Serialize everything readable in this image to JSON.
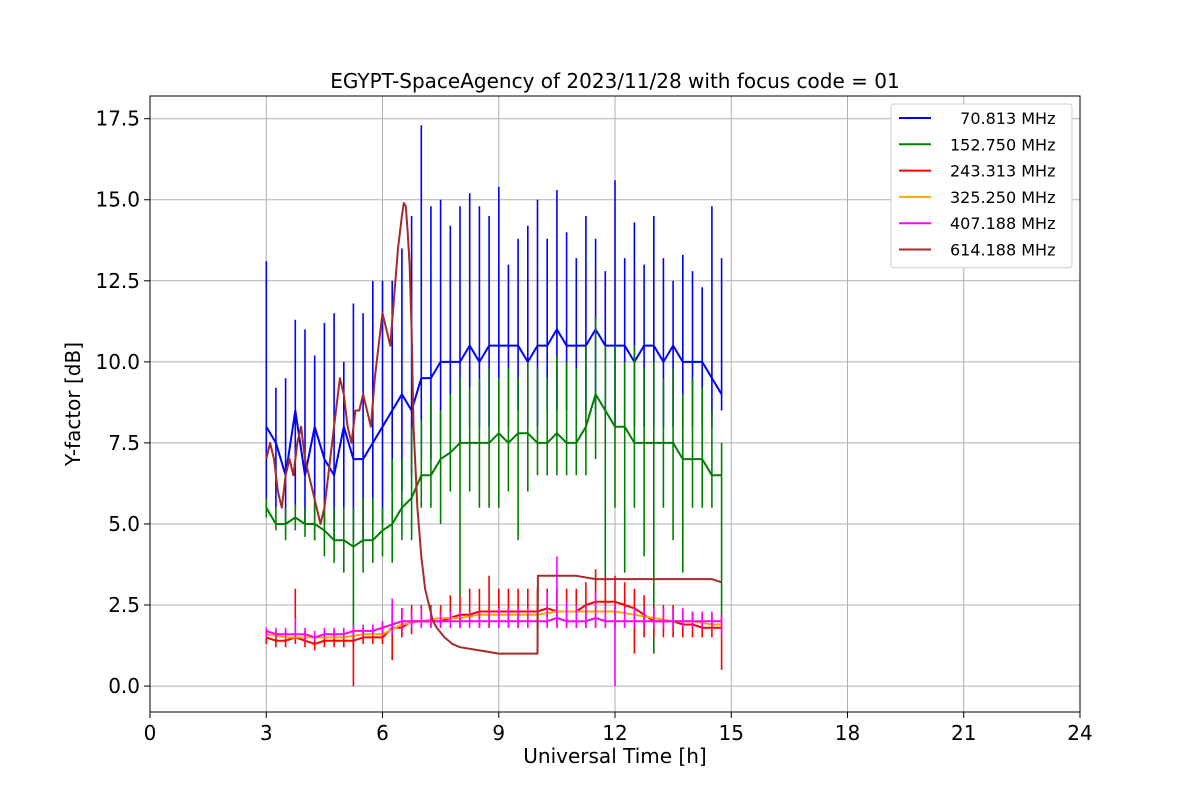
{
  "chart_data": {
    "type": "line",
    "title": "EGYPT-SpaceAgency of 2023/11/28 with focus code = 01",
    "xlabel": "Universal Time [h]",
    "ylabel": "Y-factor [dB]",
    "xlim": [
      0,
      24
    ],
    "ylim": [
      -0.8,
      18.2
    ],
    "xticks": [
      0,
      3,
      6,
      9,
      12,
      15,
      18,
      21,
      24
    ],
    "yticks": [
      0.0,
      2.5,
      5.0,
      7.5,
      10.0,
      12.5,
      15.0,
      17.5
    ],
    "xtick_labels": [
      "0",
      "3",
      "6",
      "9",
      "12",
      "15",
      "18",
      "21",
      "24"
    ],
    "ytick_labels": [
      "0.0",
      "2.5",
      "5.0",
      "7.5",
      "10.0",
      "12.5",
      "15.0",
      "17.5"
    ],
    "grid": true,
    "legend_position": "top-right",
    "series": [
      {
        "name": "  70.813 MHz",
        "color": "#0000ff",
        "x": [
          3.0,
          3.25,
          3.5,
          3.75,
          4.0,
          4.25,
          4.5,
          4.75,
          5.0,
          5.25,
          5.5,
          5.75,
          6.0,
          6.25,
          6.5,
          6.75,
          7.0,
          7.25,
          7.5,
          7.75,
          8.0,
          8.25,
          8.5,
          8.75,
          9.0,
          9.25,
          9.5,
          9.75,
          10.0,
          10.25,
          10.5,
          10.75,
          11.0,
          11.25,
          11.5,
          11.75,
          12.0,
          12.25,
          12.5,
          12.75,
          13.0,
          13.25,
          13.5,
          13.75,
          14.0,
          14.25,
          14.5,
          14.75
        ],
        "y": [
          8.0,
          7.5,
          6.5,
          8.5,
          6.5,
          8.0,
          7.0,
          6.5,
          8.0,
          7.0,
          7.0,
          7.5,
          8.0,
          8.5,
          9.0,
          8.5,
          9.5,
          9.5,
          10.0,
          10.0,
          10.0,
          10.5,
          10.0,
          10.5,
          10.5,
          10.5,
          10.5,
          10.0,
          10.5,
          10.5,
          11.0,
          10.5,
          10.5,
          10.5,
          11.0,
          10.5,
          10.5,
          10.5,
          10.0,
          10.5,
          10.5,
          10.0,
          10.5,
          10.0,
          10.0,
          10.0,
          9.5,
          9.0
        ],
        "ymin": [
          5.5,
          5.5,
          5.0,
          5.5,
          5.0,
          4.5,
          5.0,
          4.5,
          5.5,
          4.5,
          4.5,
          5.0,
          5.0,
          6.0,
          6.0,
          6.5,
          7.0,
          7.0,
          7.5,
          7.5,
          7.5,
          8.0,
          8.0,
          8.0,
          8.0,
          8.0,
          8.5,
          8.0,
          8.0,
          8.5,
          8.5,
          8.5,
          8.5,
          8.5,
          8.5,
          8.5,
          8.0,
          8.0,
          8.0,
          8.0,
          8.0,
          8.0,
          8.0,
          8.0,
          8.0,
          8.0,
          8.0,
          8.5
        ],
        "ymax": [
          13.1,
          9.2,
          9.5,
          11.3,
          11.0,
          10.2,
          11.2,
          11.5,
          10.0,
          11.8,
          11.5,
          12.5,
          12.5,
          12.5,
          13.5,
          14.5,
          17.3,
          14.8,
          15.0,
          14.2,
          14.8,
          15.2,
          14.8,
          14.5,
          15.4,
          13.0,
          13.8,
          14.2,
          15.0,
          13.8,
          15.3,
          14.0,
          13.2,
          14.5,
          13.8,
          12.8,
          15.6,
          13.2,
          14.3,
          13.0,
          14.5,
          13.2,
          12.5,
          13.3,
          12.8,
          12.3,
          14.8,
          13.2
        ]
      },
      {
        "name": "152.750 MHz",
        "color": "#008000",
        "x": [
          3.0,
          3.25,
          3.5,
          3.75,
          4.0,
          4.25,
          4.5,
          4.75,
          5.0,
          5.25,
          5.5,
          5.75,
          6.0,
          6.25,
          6.5,
          6.75,
          7.0,
          7.25,
          7.5,
          7.75,
          8.0,
          8.25,
          8.5,
          8.75,
          9.0,
          9.25,
          9.5,
          9.75,
          10.0,
          10.25,
          10.5,
          10.75,
          11.0,
          11.25,
          11.5,
          11.75,
          12.0,
          12.25,
          12.5,
          12.75,
          13.0,
          13.25,
          13.5,
          13.75,
          14.0,
          14.25,
          14.5,
          14.75
        ],
        "y": [
          5.5,
          5.0,
          5.0,
          5.2,
          5.0,
          5.0,
          4.8,
          4.5,
          4.5,
          4.3,
          4.5,
          4.5,
          4.8,
          5.0,
          5.5,
          5.8,
          6.5,
          6.5,
          7.0,
          7.2,
          7.5,
          7.5,
          7.5,
          7.5,
          7.8,
          7.5,
          7.8,
          7.8,
          7.5,
          7.5,
          7.8,
          7.5,
          7.5,
          8.0,
          9.0,
          8.5,
          8.0,
          8.0,
          7.5,
          7.5,
          7.5,
          7.5,
          7.5,
          7.0,
          7.0,
          7.0,
          6.5,
          6.5
        ],
        "ymin": [
          5.2,
          4.8,
          4.5,
          4.8,
          4.6,
          4.5,
          4.0,
          3.8,
          3.5,
          1.2,
          3.5,
          3.8,
          4.0,
          3.8,
          4.5,
          4.5,
          5.5,
          5.5,
          5.0,
          6.0,
          2.8,
          6.0,
          5.5,
          5.5,
          5.5,
          6.0,
          4.5,
          6.0,
          6.5,
          6.5,
          6.5,
          6.5,
          6.5,
          6.5,
          7.0,
          1.8,
          5.5,
          3.5,
          5.5,
          4.0,
          1.0,
          5.5,
          4.5,
          3.5,
          5.5,
          5.5,
          5.5,
          2.0
        ],
        "ymax": [
          5.8,
          5.5,
          5.5,
          5.6,
          5.5,
          5.8,
          5.5,
          5.5,
          5.5,
          5.5,
          5.8,
          5.8,
          5.5,
          7.0,
          7.0,
          8.0,
          8.2,
          8.8,
          8.5,
          9.0,
          9.5,
          9.2,
          9.5,
          9.8,
          9.5,
          9.8,
          9.5,
          10.0,
          9.8,
          9.5,
          10.2,
          10.0,
          9.8,
          10.5,
          11.4,
          10.5,
          10.5,
          10.0,
          10.5,
          9.8,
          10.0,
          9.5,
          9.8,
          9.0,
          9.5,
          9.2,
          8.5,
          7.5
        ]
      },
      {
        "name": "243.313 MHz",
        "color": "#ff0000",
        "x": [
          3.0,
          3.25,
          3.5,
          3.75,
          4.0,
          4.25,
          4.5,
          4.75,
          5.0,
          5.25,
          5.5,
          5.75,
          6.0,
          6.25,
          6.5,
          6.75,
          7.0,
          7.25,
          7.5,
          7.75,
          8.0,
          8.25,
          8.5,
          8.75,
          9.0,
          9.25,
          9.5,
          9.75,
          10.0,
          10.25,
          10.5,
          10.75,
          11.0,
          11.25,
          11.5,
          11.75,
          12.0,
          12.25,
          12.5,
          12.75,
          13.0,
          13.25,
          13.5,
          13.75,
          14.0,
          14.25,
          14.5,
          14.75
        ],
        "y": [
          1.5,
          1.4,
          1.4,
          1.5,
          1.4,
          1.3,
          1.4,
          1.4,
          1.4,
          1.4,
          1.5,
          1.5,
          1.5,
          1.8,
          1.8,
          2.0,
          2.0,
          2.0,
          2.0,
          2.1,
          2.2,
          2.2,
          2.3,
          2.3,
          2.3,
          2.3,
          2.3,
          2.3,
          2.3,
          2.4,
          2.3,
          2.3,
          2.3,
          2.5,
          2.6,
          2.6,
          2.6,
          2.5,
          2.4,
          2.2,
          2.0,
          2.0,
          2.0,
          1.9,
          1.9,
          1.8,
          1.8,
          1.8
        ],
        "ymin": [
          1.3,
          1.2,
          1.2,
          1.3,
          1.2,
          1.1,
          1.2,
          1.2,
          1.2,
          0.0,
          1.3,
          1.3,
          1.3,
          0.8,
          1.5,
          1.6,
          1.8,
          1.8,
          1.8,
          1.8,
          1.8,
          1.8,
          1.8,
          1.8,
          1.8,
          1.8,
          1.8,
          1.8,
          1.8,
          1.8,
          1.8,
          1.8,
          1.8,
          1.8,
          1.8,
          1.8,
          1.8,
          1.8,
          1.0,
          1.5,
          1.5,
          1.5,
          1.5,
          1.5,
          1.5,
          1.5,
          1.5,
          0.5
        ],
        "ymax": [
          1.8,
          1.7,
          1.7,
          3.0,
          1.7,
          1.6,
          1.7,
          1.7,
          1.7,
          1.8,
          1.8,
          1.8,
          1.9,
          2.4,
          2.4,
          2.5,
          2.5,
          2.5,
          2.5,
          2.8,
          2.8,
          3.0,
          3.0,
          3.4,
          3.0,
          3.0,
          3.0,
          3.0,
          3.0,
          3.0,
          3.0,
          3.0,
          3.0,
          3.2,
          3.6,
          3.4,
          3.4,
          3.2,
          3.0,
          2.8,
          2.5,
          2.5,
          2.5,
          2.3,
          2.3,
          2.2,
          2.2,
          2.2
        ]
      },
      {
        "name": "325.250 MHz",
        "color": "#ffa500",
        "x": [
          3.0,
          3.5,
          4.0,
          4.5,
          5.0,
          5.5,
          6.0,
          6.5,
          7.0,
          7.5,
          8.0,
          8.5,
          9.0,
          9.5,
          10.0,
          10.5,
          11.0,
          11.5,
          12.0,
          12.5,
          13.0,
          13.5,
          14.0,
          14.5,
          14.75
        ],
        "y": [
          1.6,
          1.5,
          1.5,
          1.5,
          1.5,
          1.6,
          1.6,
          1.9,
          2.0,
          2.1,
          2.1,
          2.2,
          2.2,
          2.2,
          2.2,
          2.3,
          2.3,
          2.3,
          2.3,
          2.2,
          2.1,
          2.0,
          2.0,
          1.9,
          1.9
        ]
      },
      {
        "name": "407.188 MHz",
        "color": "#ff00ff",
        "x": [
          3.0,
          3.25,
          3.5,
          3.75,
          4.0,
          4.25,
          4.5,
          4.75,
          5.0,
          5.25,
          5.5,
          5.75,
          6.0,
          6.25,
          6.5,
          6.75,
          7.0,
          7.25,
          7.5,
          7.75,
          8.0,
          8.25,
          8.5,
          8.75,
          9.0,
          9.25,
          9.5,
          9.75,
          10.0,
          10.25,
          10.5,
          10.75,
          11.0,
          11.25,
          11.5,
          11.75,
          12.0,
          12.25,
          12.5,
          12.75,
          13.0,
          13.25,
          13.5,
          13.75,
          14.0,
          14.25,
          14.5,
          14.75
        ],
        "y": [
          1.7,
          1.6,
          1.6,
          1.6,
          1.6,
          1.5,
          1.6,
          1.6,
          1.6,
          1.7,
          1.7,
          1.7,
          1.8,
          1.9,
          2.0,
          2.0,
          2.0,
          2.0,
          2.0,
          2.0,
          2.0,
          2.0,
          2.0,
          2.0,
          2.0,
          2.0,
          2.0,
          2.0,
          2.0,
          2.0,
          2.1,
          2.0,
          2.0,
          2.0,
          2.1,
          2.0,
          2.0,
          2.0,
          2.0,
          2.0,
          2.0,
          2.0,
          2.0,
          2.0,
          2.0,
          2.0,
          2.0,
          2.0
        ],
        "ymin": [
          1.5,
          1.5,
          1.5,
          1.5,
          1.4,
          1.4,
          1.5,
          1.5,
          1.5,
          1.5,
          1.5,
          1.6,
          1.6,
          1.6,
          1.7,
          1.8,
          1.8,
          1.8,
          1.8,
          1.8,
          1.8,
          1.8,
          1.8,
          1.8,
          1.8,
          1.8,
          1.8,
          1.8,
          1.8,
          1.8,
          1.8,
          1.8,
          1.8,
          1.8,
          1.8,
          1.8,
          0.0,
          1.8,
          1.8,
          1.8,
          1.8,
          1.8,
          1.8,
          1.8,
          1.8,
          1.8,
          1.8,
          1.6
        ],
        "ymax": [
          1.8,
          1.8,
          1.8,
          2.1,
          1.8,
          1.7,
          1.8,
          1.8,
          1.8,
          1.9,
          1.9,
          1.9,
          2.0,
          2.7,
          2.4,
          2.3,
          2.4,
          2.3,
          2.3,
          2.3,
          2.3,
          2.3,
          2.3,
          2.3,
          2.4,
          2.4,
          2.4,
          2.4,
          2.4,
          2.9,
          4.0,
          2.6,
          2.5,
          2.5,
          2.9,
          2.5,
          2.5,
          2.4,
          2.4,
          2.4,
          2.4,
          2.4,
          2.4,
          2.4,
          2.3,
          2.3,
          2.3,
          2.2
        ]
      },
      {
        "name": "614.188 MHz",
        "color": "#a52a2a",
        "x": [
          3.0,
          3.1,
          3.2,
          3.3,
          3.4,
          3.5,
          3.6,
          3.7,
          3.8,
          3.9,
          4.0,
          4.1,
          4.2,
          4.3,
          4.4,
          4.5,
          4.6,
          4.7,
          4.8,
          4.9,
          5.0,
          5.1,
          5.2,
          5.3,
          5.4,
          5.5,
          5.6,
          5.7,
          5.8,
          5.9,
          6.0,
          6.1,
          6.2,
          6.3,
          6.4,
          6.5,
          6.55,
          6.6,
          6.65,
          6.7,
          6.75,
          6.8,
          6.9,
          7.0,
          7.1,
          7.2,
          7.3,
          7.4,
          7.6,
          7.8,
          8.0,
          8.5,
          9.0,
          9.5,
          10.0,
          10.01,
          10.5,
          11.0,
          11.5,
          12.0,
          12.5,
          13.0,
          13.5,
          14.0,
          14.5,
          14.75
        ],
        "y": [
          7.0,
          7.5,
          7.0,
          6.0,
          5.5,
          6.5,
          7.0,
          6.5,
          7.5,
          8.0,
          7.0,
          6.5,
          6.0,
          5.5,
          5.0,
          5.5,
          6.5,
          7.5,
          8.5,
          9.5,
          9.0,
          8.0,
          7.5,
          8.5,
          8.5,
          9.0,
          8.5,
          8.0,
          9.5,
          10.5,
          11.5,
          11.0,
          10.5,
          12.0,
          13.5,
          14.5,
          14.9,
          14.8,
          14.0,
          13.0,
          11.0,
          8.0,
          5.5,
          4.0,
          3.0,
          2.5,
          2.0,
          1.8,
          1.5,
          1.3,
          1.2,
          1.1,
          1.0,
          1.0,
          1.0,
          3.4,
          3.4,
          3.4,
          3.3,
          3.3,
          3.3,
          3.3,
          3.3,
          3.3,
          3.3,
          3.2
        ]
      }
    ]
  }
}
